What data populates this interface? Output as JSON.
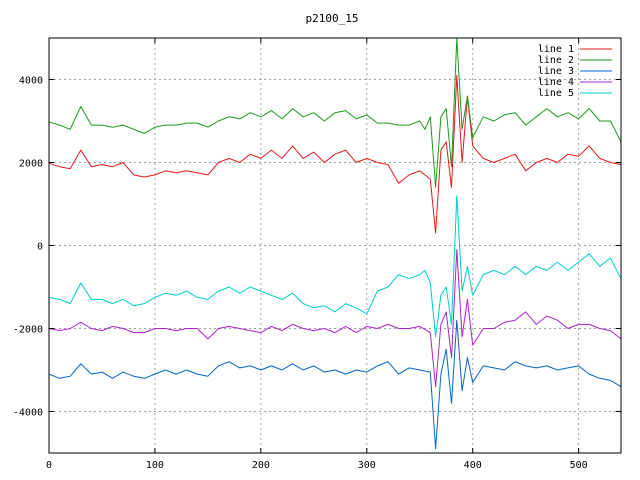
{
  "chart_data": {
    "type": "line",
    "title": "p2100_15",
    "xlabel": "",
    "ylabel": "",
    "xlim": [
      0,
      540
    ],
    "ylim": [
      -5000,
      5000
    ],
    "xticks": [
      0,
      100,
      200,
      300,
      400,
      500
    ],
    "yticks": [
      -4000,
      -2000,
      0,
      2000,
      4000
    ],
    "grid": true,
    "legend_position": "top-right",
    "series": [
      {
        "name": "line 1",
        "color": "#e41a1c",
        "points": [
          [
            0,
            1980
          ],
          [
            10,
            1900
          ],
          [
            20,
            1850
          ],
          [
            30,
            2300
          ],
          [
            40,
            1900
          ],
          [
            50,
            1950
          ],
          [
            60,
            1900
          ],
          [
            70,
            2000
          ],
          [
            80,
            1700
          ],
          [
            90,
            1650
          ],
          [
            100,
            1700
          ],
          [
            110,
            1800
          ],
          [
            120,
            1750
          ],
          [
            130,
            1800
          ],
          [
            140,
            1750
          ],
          [
            150,
            1700
          ],
          [
            160,
            2000
          ],
          [
            170,
            2100
          ],
          [
            180,
            2000
          ],
          [
            190,
            2200
          ],
          [
            200,
            2100
          ],
          [
            210,
            2300
          ],
          [
            220,
            2100
          ],
          [
            230,
            2400
          ],
          [
            240,
            2100
          ],
          [
            250,
            2250
          ],
          [
            260,
            2000
          ],
          [
            270,
            2200
          ],
          [
            280,
            2300
          ],
          [
            290,
            2000
          ],
          [
            300,
            2100
          ],
          [
            310,
            2000
          ],
          [
            320,
            1950
          ],
          [
            330,
            1500
          ],
          [
            340,
            1700
          ],
          [
            350,
            1800
          ],
          [
            360,
            1600
          ],
          [
            365,
            300
          ],
          [
            370,
            2300
          ],
          [
            375,
            2500
          ],
          [
            380,
            1400
          ],
          [
            385,
            4100
          ],
          [
            390,
            2000
          ],
          [
            395,
            3600
          ],
          [
            400,
            2400
          ],
          [
            410,
            2100
          ],
          [
            420,
            2000
          ],
          [
            430,
            2100
          ],
          [
            440,
            2200
          ],
          [
            450,
            1800
          ],
          [
            460,
            2000
          ],
          [
            470,
            2100
          ],
          [
            480,
            2000
          ],
          [
            490,
            2200
          ],
          [
            500,
            2150
          ],
          [
            510,
            2400
          ],
          [
            520,
            2100
          ],
          [
            530,
            2000
          ],
          [
            540,
            1950
          ]
        ]
      },
      {
        "name": "line 2",
        "color": "#1a9a1a",
        "points": [
          [
            0,
            2980
          ],
          [
            10,
            2900
          ],
          [
            20,
            2800
          ],
          [
            30,
            3350
          ],
          [
            40,
            2900
          ],
          [
            50,
            2900
          ],
          [
            60,
            2850
          ],
          [
            70,
            2900
          ],
          [
            80,
            2800
          ],
          [
            90,
            2700
          ],
          [
            100,
            2850
          ],
          [
            110,
            2900
          ],
          [
            120,
            2900
          ],
          [
            130,
            2950
          ],
          [
            140,
            2950
          ],
          [
            150,
            2850
          ],
          [
            160,
            3000
          ],
          [
            170,
            3100
          ],
          [
            180,
            3050
          ],
          [
            190,
            3200
          ],
          [
            200,
            3100
          ],
          [
            210,
            3250
          ],
          [
            220,
            3050
          ],
          [
            230,
            3300
          ],
          [
            240,
            3100
          ],
          [
            250,
            3200
          ],
          [
            260,
            3000
          ],
          [
            270,
            3200
          ],
          [
            280,
            3250
          ],
          [
            290,
            3050
          ],
          [
            300,
            3150
          ],
          [
            310,
            2950
          ],
          [
            320,
            2950
          ],
          [
            330,
            2900
          ],
          [
            340,
            2900
          ],
          [
            350,
            3000
          ],
          [
            355,
            2800
          ],
          [
            360,
            3100
          ],
          [
            365,
            1400
          ],
          [
            370,
            3100
          ],
          [
            375,
            3300
          ],
          [
            380,
            1900
          ],
          [
            385,
            5000
          ],
          [
            390,
            2800
          ],
          [
            395,
            3600
          ],
          [
            400,
            2600
          ],
          [
            410,
            3100
          ],
          [
            420,
            3000
          ],
          [
            430,
            3150
          ],
          [
            440,
            3200
          ],
          [
            450,
            2900
          ],
          [
            460,
            3100
          ],
          [
            470,
            3300
          ],
          [
            480,
            3100
          ],
          [
            490,
            3200
          ],
          [
            500,
            3050
          ],
          [
            510,
            3300
          ],
          [
            520,
            3000
          ],
          [
            530,
            3000
          ],
          [
            540,
            2500
          ]
        ]
      },
      {
        "name": "line 3",
        "color": "#0066cc",
        "points": [
          [
            0,
            -3100
          ],
          [
            10,
            -3200
          ],
          [
            20,
            -3150
          ],
          [
            30,
            -2850
          ],
          [
            40,
            -3100
          ],
          [
            50,
            -3050
          ],
          [
            60,
            -3200
          ],
          [
            70,
            -3050
          ],
          [
            80,
            -3150
          ],
          [
            90,
            -3200
          ],
          [
            100,
            -3100
          ],
          [
            110,
            -3000
          ],
          [
            120,
            -3100
          ],
          [
            130,
            -3000
          ],
          [
            140,
            -3100
          ],
          [
            150,
            -3150
          ],
          [
            160,
            -2900
          ],
          [
            170,
            -2800
          ],
          [
            180,
            -2950
          ],
          [
            190,
            -2900
          ],
          [
            200,
            -3000
          ],
          [
            210,
            -2900
          ],
          [
            220,
            -3000
          ],
          [
            230,
            -2850
          ],
          [
            240,
            -3000
          ],
          [
            250,
            -2900
          ],
          [
            260,
            -3050
          ],
          [
            270,
            -3000
          ],
          [
            280,
            -3100
          ],
          [
            290,
            -3000
          ],
          [
            300,
            -3050
          ],
          [
            310,
            -2900
          ],
          [
            320,
            -2800
          ],
          [
            330,
            -3100
          ],
          [
            340,
            -2950
          ],
          [
            350,
            -3000
          ],
          [
            360,
            -3050
          ],
          [
            365,
            -4900
          ],
          [
            370,
            -3100
          ],
          [
            375,
            -2500
          ],
          [
            380,
            -3800
          ],
          [
            385,
            -1800
          ],
          [
            390,
            -3500
          ],
          [
            395,
            -2700
          ],
          [
            400,
            -3300
          ],
          [
            410,
            -2900
          ],
          [
            420,
            -2950
          ],
          [
            430,
            -3000
          ],
          [
            440,
            -2800
          ],
          [
            450,
            -2900
          ],
          [
            460,
            -2950
          ],
          [
            470,
            -2900
          ],
          [
            480,
            -3000
          ],
          [
            490,
            -2950
          ],
          [
            500,
            -2900
          ],
          [
            510,
            -3100
          ],
          [
            520,
            -3200
          ],
          [
            530,
            -3250
          ],
          [
            540,
            -3400
          ]
        ]
      },
      {
        "name": "line 4",
        "color": "#aa22cc",
        "points": [
          [
            0,
            -2000
          ],
          [
            10,
            -2050
          ],
          [
            20,
            -2000
          ],
          [
            30,
            -1850
          ],
          [
            40,
            -2000
          ],
          [
            50,
            -2050
          ],
          [
            60,
            -1950
          ],
          [
            70,
            -2000
          ],
          [
            80,
            -2100
          ],
          [
            90,
            -2100
          ],
          [
            100,
            -2000
          ],
          [
            110,
            -2000
          ],
          [
            120,
            -2050
          ],
          [
            130,
            -2000
          ],
          [
            140,
            -2000
          ],
          [
            150,
            -2250
          ],
          [
            160,
            -2000
          ],
          [
            170,
            -1950
          ],
          [
            180,
            -2000
          ],
          [
            190,
            -2050
          ],
          [
            200,
            -2100
          ],
          [
            210,
            -1950
          ],
          [
            220,
            -2050
          ],
          [
            230,
            -1900
          ],
          [
            240,
            -2000
          ],
          [
            250,
            -2050
          ],
          [
            260,
            -2000
          ],
          [
            270,
            -2100
          ],
          [
            280,
            -1950
          ],
          [
            290,
            -2100
          ],
          [
            300,
            -1950
          ],
          [
            310,
            -2000
          ],
          [
            320,
            -1900
          ],
          [
            330,
            -2000
          ],
          [
            340,
            -2000
          ],
          [
            350,
            -1950
          ],
          [
            360,
            -2100
          ],
          [
            365,
            -3400
          ],
          [
            370,
            -1900
          ],
          [
            375,
            -1600
          ],
          [
            380,
            -2700
          ],
          [
            385,
            -100
          ],
          [
            390,
            -2200
          ],
          [
            395,
            -1300
          ],
          [
            400,
            -2400
          ],
          [
            410,
            -2000
          ],
          [
            420,
            -2000
          ],
          [
            430,
            -1850
          ],
          [
            440,
            -1800
          ],
          [
            450,
            -1600
          ],
          [
            460,
            -1900
          ],
          [
            470,
            -1700
          ],
          [
            480,
            -1800
          ],
          [
            490,
            -2000
          ],
          [
            500,
            -1900
          ],
          [
            510,
            -1900
          ],
          [
            520,
            -2000
          ],
          [
            530,
            -2050
          ],
          [
            540,
            -2250
          ]
        ]
      },
      {
        "name": "line 5",
        "color": "#00cccc",
        "points": [
          [
            0,
            -1250
          ],
          [
            10,
            -1300
          ],
          [
            20,
            -1400
          ],
          [
            30,
            -900
          ],
          [
            40,
            -1300
          ],
          [
            50,
            -1300
          ],
          [
            60,
            -1400
          ],
          [
            70,
            -1300
          ],
          [
            80,
            -1450
          ],
          [
            90,
            -1400
          ],
          [
            100,
            -1250
          ],
          [
            110,
            -1150
          ],
          [
            120,
            -1200
          ],
          [
            130,
            -1100
          ],
          [
            140,
            -1250
          ],
          [
            150,
            -1300
          ],
          [
            160,
            -1100
          ],
          [
            170,
            -1000
          ],
          [
            180,
            -1150
          ],
          [
            190,
            -1000
          ],
          [
            200,
            -1100
          ],
          [
            210,
            -1200
          ],
          [
            220,
            -1300
          ],
          [
            230,
            -1150
          ],
          [
            240,
            -1400
          ],
          [
            250,
            -1500
          ],
          [
            260,
            -1450
          ],
          [
            270,
            -1600
          ],
          [
            280,
            -1400
          ],
          [
            290,
            -1500
          ],
          [
            300,
            -1650
          ],
          [
            310,
            -1100
          ],
          [
            320,
            -1000
          ],
          [
            330,
            -700
          ],
          [
            340,
            -800
          ],
          [
            350,
            -700
          ],
          [
            355,
            -600
          ],
          [
            360,
            -900
          ],
          [
            365,
            -2200
          ],
          [
            370,
            -1200
          ],
          [
            375,
            -1000
          ],
          [
            380,
            -1900
          ],
          [
            385,
            1200
          ],
          [
            390,
            -1100
          ],
          [
            395,
            -500
          ],
          [
            400,
            -1200
          ],
          [
            410,
            -700
          ],
          [
            420,
            -600
          ],
          [
            430,
            -700
          ],
          [
            440,
            -500
          ],
          [
            450,
            -700
          ],
          [
            460,
            -500
          ],
          [
            470,
            -600
          ],
          [
            480,
            -400
          ],
          [
            490,
            -600
          ],
          [
            500,
            -400
          ],
          [
            510,
            -200
          ],
          [
            520,
            -500
          ],
          [
            530,
            -300
          ],
          [
            540,
            -800
          ]
        ]
      }
    ]
  }
}
